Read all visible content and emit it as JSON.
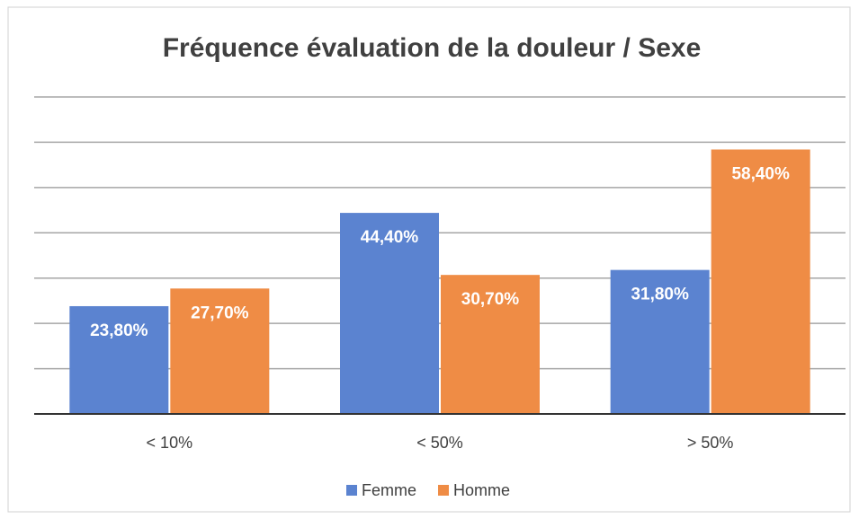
{
  "chart_data": {
    "type": "bar",
    "title": "Fréquence évaluation de la douleur / Sexe",
    "categories": [
      "< 10%",
      "< 50%",
      "> 50%"
    ],
    "series": [
      {
        "name": "Femme",
        "color": "#5b83d0",
        "values": [
          23.8,
          44.4,
          31.8
        ],
        "value_labels": [
          "23,80%",
          "44,40%",
          "31,80%"
        ]
      },
      {
        "name": "Homme",
        "color": "#ef8c45",
        "values": [
          27.7,
          30.7,
          58.4
        ],
        "value_labels": [
          "27,70%",
          "30,70%",
          "58,40%"
        ]
      }
    ],
    "ylim": [
      0,
      70
    ],
    "yticks": [
      0,
      10,
      20,
      30,
      40,
      50,
      60,
      70
    ],
    "grid": true,
    "legend": "bottom"
  }
}
